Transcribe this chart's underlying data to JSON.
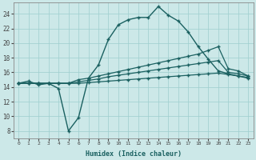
{
  "xlabel": "Humidex (Indice chaleur)",
  "background_color": "#cce8e8",
  "grid_color": "#9ecece",
  "line_color": "#1a6060",
  "xlim": [
    -0.5,
    23.5
  ],
  "ylim": [
    7,
    25.5
  ],
  "yticks": [
    8,
    10,
    12,
    14,
    16,
    18,
    20,
    22,
    24
  ],
  "xticks": [
    0,
    1,
    2,
    3,
    4,
    5,
    6,
    7,
    8,
    9,
    10,
    11,
    12,
    13,
    14,
    15,
    16,
    17,
    18,
    19,
    20,
    21,
    22,
    23
  ],
  "series": [
    {
      "x": [
        0,
        1,
        2,
        3,
        4,
        5,
        6,
        7,
        8,
        9,
        10,
        11,
        12,
        13,
        14,
        15,
        16,
        17,
        18,
        19,
        20,
        21,
        22,
        23
      ],
      "y": [
        14.5,
        14.8,
        14.3,
        14.5,
        13.8,
        8.0,
        9.8,
        15.2,
        17.0,
        20.5,
        22.5,
        23.2,
        23.5,
        23.5,
        25.0,
        23.8,
        23.0,
        21.5,
        19.5,
        17.8,
        16.2,
        15.8,
        15.5,
        15.2
      ],
      "lw": 1.0,
      "marker": "+"
    },
    {
      "x": [
        0,
        1,
        2,
        3,
        4,
        5,
        6,
        7,
        8,
        9,
        10,
        11,
        12,
        13,
        14,
        15,
        16,
        17,
        18,
        19,
        20,
        21,
        22,
        23
      ],
      "y": [
        14.5,
        14.5,
        14.5,
        14.5,
        14.5,
        14.5,
        15.0,
        15.2,
        15.5,
        15.8,
        16.1,
        16.4,
        16.7,
        17.0,
        17.3,
        17.6,
        17.9,
        18.2,
        18.5,
        19.0,
        19.5,
        16.5,
        16.2,
        15.5
      ],
      "lw": 0.9,
      "marker": "+"
    },
    {
      "x": [
        0,
        1,
        2,
        3,
        4,
        5,
        6,
        7,
        8,
        9,
        10,
        11,
        12,
        13,
        14,
        15,
        16,
        17,
        18,
        19,
        20,
        21,
        22,
        23
      ],
      "y": [
        14.5,
        14.5,
        14.5,
        14.5,
        14.5,
        14.5,
        14.7,
        14.9,
        15.1,
        15.4,
        15.6,
        15.8,
        16.0,
        16.2,
        16.4,
        16.6,
        16.8,
        17.0,
        17.2,
        17.4,
        17.6,
        16.0,
        15.8,
        15.5
      ],
      "lw": 0.9,
      "marker": "+"
    },
    {
      "x": [
        0,
        1,
        2,
        3,
        4,
        5,
        6,
        7,
        8,
        9,
        10,
        11,
        12,
        13,
        14,
        15,
        16,
        17,
        18,
        19,
        20,
        21,
        22,
        23
      ],
      "y": [
        14.5,
        14.5,
        14.5,
        14.5,
        14.5,
        14.5,
        14.5,
        14.6,
        14.7,
        14.8,
        14.9,
        15.0,
        15.1,
        15.2,
        15.3,
        15.4,
        15.5,
        15.6,
        15.7,
        15.8,
        15.9,
        15.7,
        15.5,
        15.3
      ],
      "lw": 0.9,
      "marker": "+"
    }
  ]
}
